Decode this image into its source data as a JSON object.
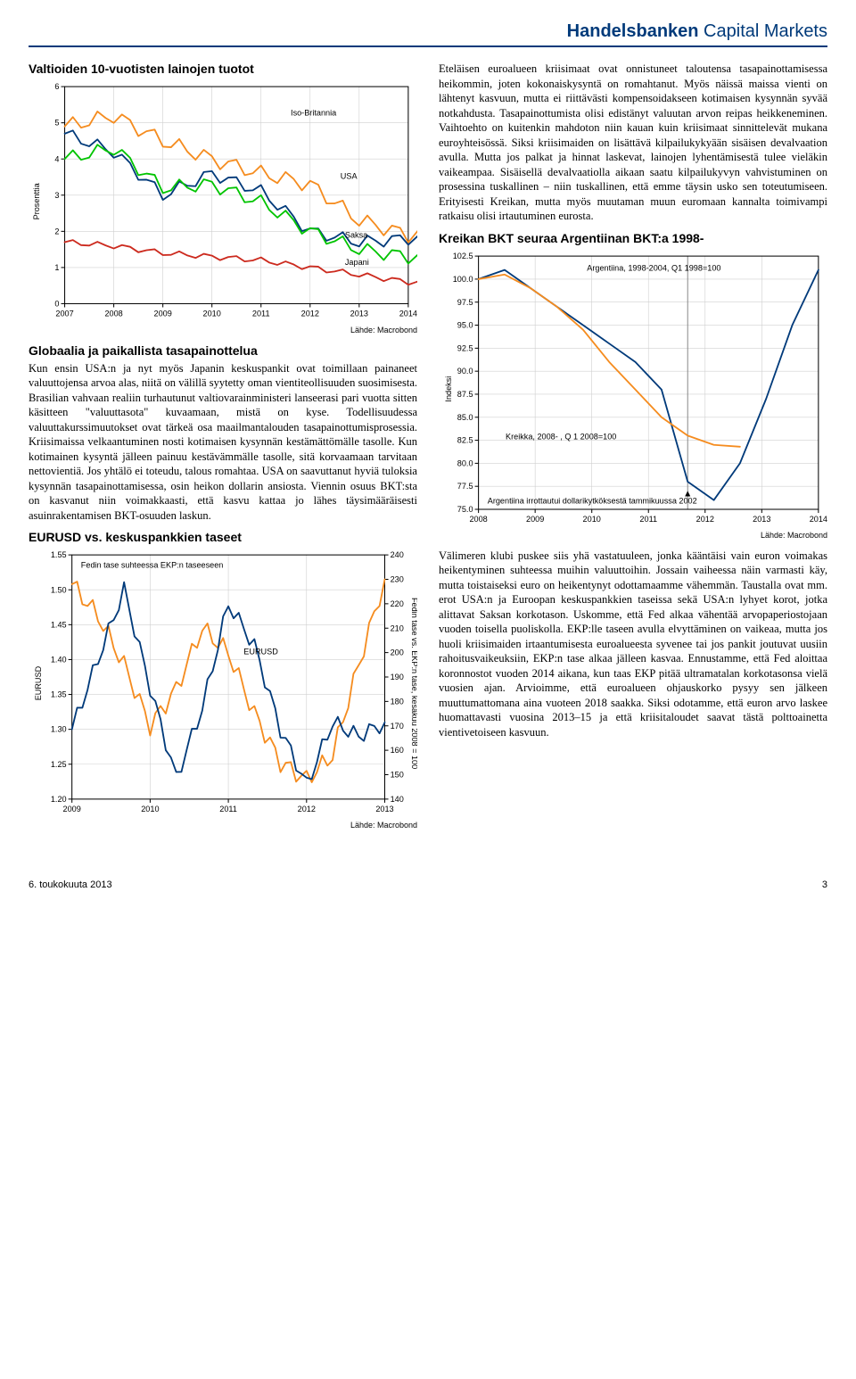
{
  "brand": {
    "bold": "Handelsbanken",
    "rest": " Capital Markets"
  },
  "charts": {
    "yields": {
      "title": "Valtioiden 10-vuotisten lainojen tuotot",
      "ylabel": "Prosenttia",
      "yticks": [
        0,
        1,
        2,
        3,
        4,
        5,
        6
      ],
      "xticks": [
        "2007",
        "2008",
        "2009",
        "2010",
        "2011",
        "2012",
        "2013",
        "2014"
      ],
      "source": "Lähde: Macrobond",
      "labels": {
        "uk": "Iso-Britannia",
        "usa": "USA",
        "germany": "Saksa",
        "japan": "Japani"
      },
      "colors": {
        "uk": "#f58c1f",
        "usa": "#003a7a",
        "germany": "#00c400",
        "japan": "#cc2a1e",
        "grid": "#d0d0d0",
        "axis": "#000000"
      },
      "series": {
        "uk": [
          4.9,
          5.2,
          4.5,
          4.0,
          3.6,
          3.3,
          2.3,
          1.9,
          2.3
        ],
        "usa": [
          4.7,
          4.2,
          3.0,
          3.6,
          3.1,
          2.0,
          1.7,
          1.8,
          2.0
        ],
        "germany": [
          4.0,
          4.3,
          3.2,
          3.3,
          2.8,
          2.0,
          1.5,
          1.3,
          1.4
        ],
        "japan": [
          1.7,
          1.6,
          1.4,
          1.3,
          1.2,
          1.0,
          0.8,
          0.6,
          0.6
        ]
      }
    },
    "eurusd": {
      "title": "EURUSD vs. keskuspankkien taseet",
      "ylabel": "EURUSD",
      "y2label": "Fedin tase vs. EKP:n tase, kesäkuu 2008 = 100",
      "yticks_left": [
        1.2,
        1.25,
        1.3,
        1.35,
        1.4,
        1.45,
        1.5,
        1.55
      ],
      "yticks_right": [
        140,
        150,
        160,
        170,
        180,
        190,
        200,
        210,
        220,
        230,
        240
      ],
      "xticks": [
        "2009",
        "2010",
        "2011",
        "2012",
        "2013"
      ],
      "source": "Lähde: Macrobond",
      "annot1": "Fedin tase suhteessa EKP:n taseeseen",
      "annot2": "EURUSD",
      "colors": {
        "fed": "#f58c1f",
        "eurusd": "#003a7a",
        "grid": "#d0d0d0"
      },
      "series": {
        "fed": [
          228,
          215,
          195,
          170,
          185,
          210,
          200,
          175,
          155,
          148,
          158,
          195,
          230
        ],
        "eurusd": [
          1.3,
          1.4,
          1.5,
          1.36,
          1.23,
          1.33,
          1.48,
          1.42,
          1.3,
          1.22,
          1.31,
          1.29,
          1.31
        ]
      }
    },
    "bkt": {
      "title": "Kreikan BKT seuraa Argentiinan BKT:a 1998-",
      "ylabel": "Indeksi",
      "yticks": [
        75.0,
        77.5,
        80.0,
        82.5,
        85.0,
        87.5,
        90.0,
        92.5,
        95.0,
        97.5,
        100.0,
        102.5
      ],
      "xticks": [
        "2008",
        "2009",
        "2010",
        "2011",
        "2012",
        "2013",
        "2014"
      ],
      "source": "Lähde: Macrobond",
      "annot1": "Argentiina, 1998-2004, Q1 1998=100",
      "annot2": "Kreikka, 2008- , Q 1 2008=100",
      "annot3": "Argentiina irrottautui dollarikytköksestä tammikuussa 2002",
      "colors": {
        "arg": "#003a7a",
        "gre": "#f58c1f",
        "grid": "#d0d0d0",
        "vline": "#888"
      },
      "series": {
        "arg": [
          100,
          101,
          99,
          97,
          95,
          93,
          91,
          88,
          78,
          76,
          80,
          87,
          95,
          101
        ],
        "gre": [
          100,
          100.5,
          99,
          97,
          94.5,
          91,
          88,
          85,
          83,
          82,
          81.8
        ]
      }
    }
  },
  "left": {
    "h1": "Globaalia ja paikallista tasapainottelua",
    "p1": "Kun ensin USA:n ja nyt myös Japanin keskuspankit ovat toimillaan painaneet valuuttojensa arvoa alas, niitä on välillä syytetty oman vientiteollisuuden suosimisesta. Brasilian vahvaan realiin turhautunut valtiovarainministeri lanseerasi pari vuotta sitten käsitteen \"valuuttasota\" kuvaamaan, mistä on kyse. Todellisuudessa valuuttakurssimuutokset ovat tärkeä osa maailmantalouden tasapainottumisprosessia. Kriisimaissa velkaantuminen nosti kotimaisen kysynnän kestämättömälle tasolle. Kun kotimainen kysyntä jälleen painuu kestävämmälle tasolle, sitä korvaamaan tarvitaan nettovientiä. Jos yhtälö ei toteudu, talous romahtaa. USA on saavuttanut hyviä tuloksia kysynnän tasapainottamisessa, osin heikon dollarin ansiosta. Viennin osuus BKT:sta on kasvanut niin voimakkaasti, että kasvu kattaa jo lähes täysimääräisesti asuinrakentamisen BKT-osuuden laskun."
  },
  "right": {
    "p1": "Eteläisen euroalueen kriisimaat ovat onnistuneet taloutensa tasapainottamisessa heikommin, joten kokonaiskysyntä on romahtanut. Myös näissä maissa vienti on lähtenyt kasvuun, mutta ei riittävästi kompensoidakseen kotimaisen kysynnän syvää notkahdusta. Tasapainottumista olisi edistänyt valuutan arvon reipas heikkeneminen. Vaihtoehto on kuitenkin mahdoton niin kauan kuin kriisimaat sinnittelevät mukana euroyhteisössä. Siksi kriisimaiden on lisättävä kilpailukykyään sisäisen devalvaation avulla. Mutta jos palkat ja hinnat laskevat, lainojen lyhentämisestä tulee vieläkin vaikeampaa. Sisäisellä devalvaatiolla aikaan saatu kilpailukyvyn vahvistuminen on prosessina tuskallinen – niin tuskallinen, että emme täysin usko sen toteutumiseen. Erityisesti Kreikan, mutta myös muutaman muun euromaan kannalta toimivampi ratkaisu olisi irtautuminen eurosta.",
    "p2": "Välimeren klubi puskee siis yhä vastatuuleen, jonka kääntäisi vain euron voimakas heikentyminen suhteessa muihin valuuttoihin. Jossain vaiheessa näin varmasti käy, mutta toistaiseksi euro on heikentynyt odottamaamme vähemmän. Taustalla ovat mm. erot USA:n ja Euroopan keskuspankkien taseissa sekä USA:n lyhyet korot, jotka alittavat Saksan korkotason. Uskomme, että Fed alkaa vähentää arvopaperiostojaan vuoden toisella puoliskolla. EKP:lle taseen avulla elvyttäminen on vaikeaa, mutta jos huoli kriisimaiden irtaantumisesta euroalueesta syvenee tai jos pankit joutuvat uusiin rahoitusvaikeuksiin, EKP:n tase alkaa jälleen kasvaa. Ennustamme, että Fed aloittaa koronnostot vuoden 2014 aikana, kun taas EKP pitää ultramatalan korkotasonsa vielä vuosien ajan. Arvioimme, että euroalueen ohjauskorko pysyy sen jälkeen muuttumattomana aina vuoteen 2018 saakka. Siksi odotamme, että euron arvo laskee huomattavasti vuosina 2013–15 ja että kriisitaloudet saavat tästä polttoainetta vientivetoiseen kasvuun."
  },
  "footer": {
    "date": "6. toukokuuta 2013",
    "page": "3"
  }
}
